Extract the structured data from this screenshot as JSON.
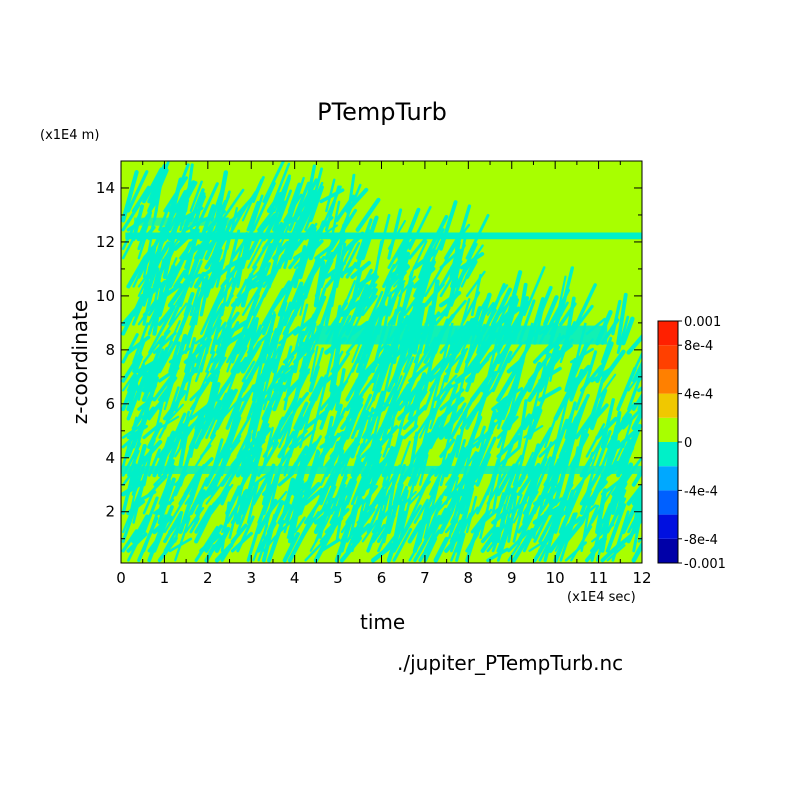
{
  "chart_data": {
    "type": "heatmap",
    "title": "PTempTurb",
    "xlabel": "time",
    "ylabel": "z-coordinate",
    "x_unit_label": "(x1E4 sec)",
    "y_unit_label": "(x1E4 m)",
    "xlim": [
      0,
      12
    ],
    "ylim": [
      0.1,
      15
    ],
    "x_ticks": [
      "0",
      "1",
      "2",
      "3",
      "4",
      "5",
      "6",
      "7",
      "8",
      "9",
      "10",
      "11",
      "12"
    ],
    "y_ticks": [
      "2",
      "4",
      "6",
      "8",
      "10",
      "12",
      "14"
    ],
    "colorbar": {
      "min": -0.001,
      "max": 0.001,
      "levels": [
        {
          "from": -0.001,
          "to": -0.0008,
          "color": "#0000a8"
        },
        {
          "from": -0.0008,
          "to": -0.0006,
          "color": "#0010e0"
        },
        {
          "from": -0.0006,
          "to": -0.0004,
          "color": "#0060ff"
        },
        {
          "from": -0.0004,
          "to": -0.0002,
          "color": "#00a8ff"
        },
        {
          "from": -0.0002,
          "to": 0,
          "color": "#00f0c8"
        },
        {
          "from": 0,
          "to": 0.0002,
          "color": "#a8ff00"
        },
        {
          "from": 0.0002,
          "to": 0.0004,
          "color": "#f0c800"
        },
        {
          "from": 0.0004,
          "to": 0.0006,
          "color": "#ff8000"
        },
        {
          "from": 0.0006,
          "to": 0.0008,
          "color": "#ff4000"
        },
        {
          "from": 0.0008,
          "to": 0.001,
          "color": "#ff2000"
        }
      ],
      "tick_labels": [
        "0.001",
        "8e-4",
        "4e-4",
        "0",
        "-4e-4",
        "-8e-4",
        "-0.001"
      ],
      "tick_values": [
        0.001,
        0.0008,
        0.0004,
        0,
        -0.0004,
        -0.0008,
        -0.001
      ]
    },
    "background_color": "#a8ff00",
    "pattern_color": "#00f0c8"
  },
  "footer_text": "./jupiter_PTempTurb.nc"
}
